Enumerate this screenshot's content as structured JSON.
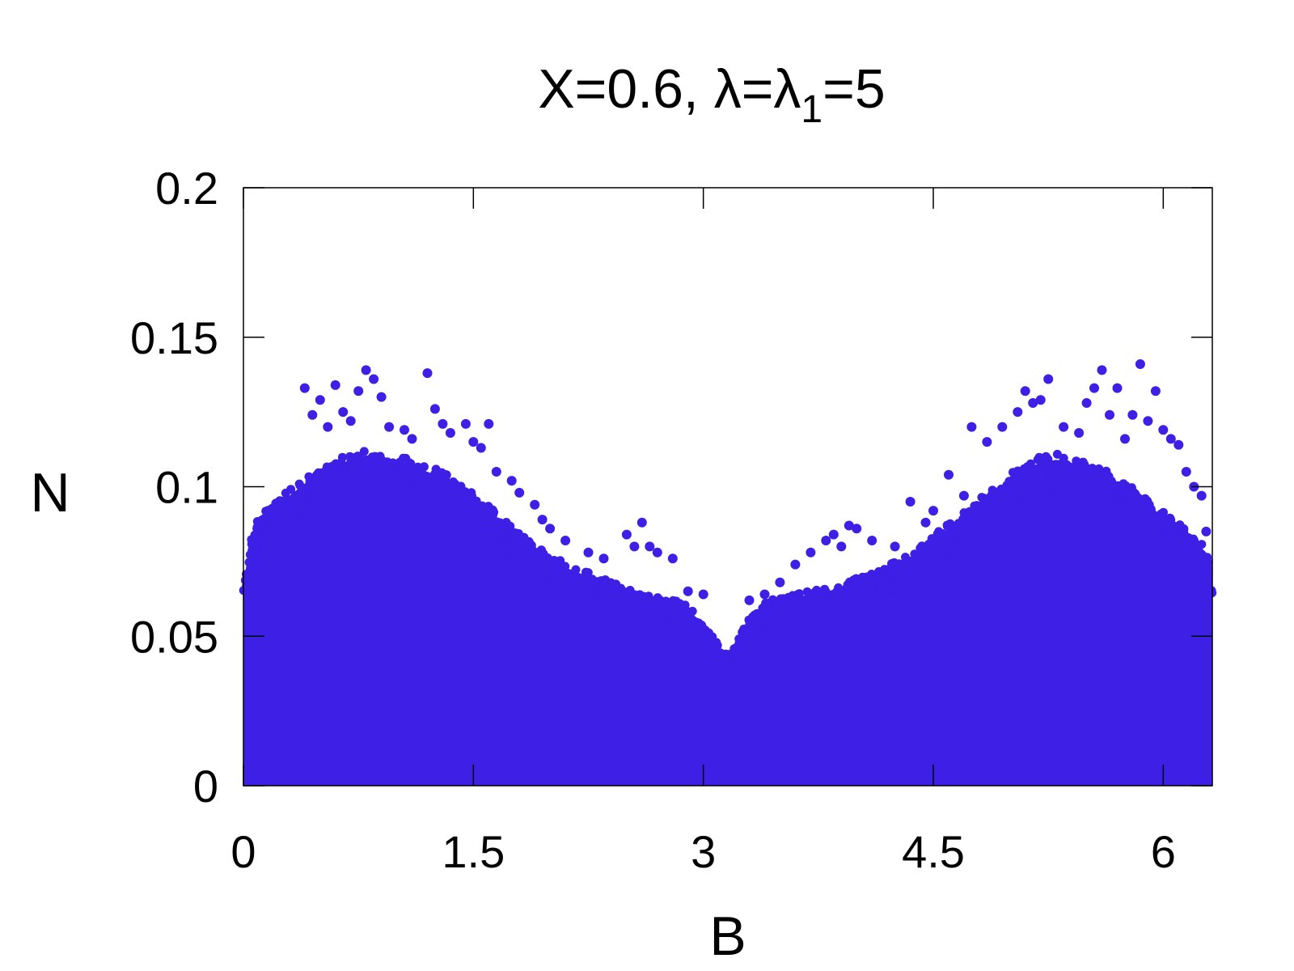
{
  "chart_data": {
    "type": "scatter",
    "title": {
      "prefix": "X=0.6, λ=λ",
      "subscript": "1",
      "suffix": "=5"
    },
    "xlabel": "B",
    "ylabel": "N",
    "xlim": [
      0,
      6.32
    ],
    "ylim": [
      0,
      0.2
    ],
    "xticks": [
      {
        "value": 0,
        "label": "0"
      },
      {
        "value": 1.5,
        "label": "1.5"
      },
      {
        "value": 3,
        "label": "3"
      },
      {
        "value": 4.5,
        "label": "4.5"
      },
      {
        "value": 6,
        "label": "6"
      }
    ],
    "yticks": [
      {
        "value": 0,
        "label": "0"
      },
      {
        "value": 0.05,
        "label": "0.05"
      },
      {
        "value": 0.1,
        "label": "0.1"
      },
      {
        "value": 0.15,
        "label": "0.15"
      },
      {
        "value": 0.2,
        "label": "0.2"
      }
    ],
    "grid": false,
    "marker_color": "#3d1fe6",
    "series": [
      {
        "envelope": [
          [
            0.0,
            0.068
          ],
          [
            0.05,
            0.083
          ],
          [
            0.1,
            0.09
          ],
          [
            0.2,
            0.093
          ],
          [
            0.3,
            0.097
          ],
          [
            0.4,
            0.101
          ],
          [
            0.5,
            0.104
          ],
          [
            0.6,
            0.107
          ],
          [
            0.7,
            0.109
          ],
          [
            0.8,
            0.11
          ],
          [
            0.9,
            0.109
          ],
          [
            1.0,
            0.108
          ],
          [
            1.1,
            0.107
          ],
          [
            1.2,
            0.105
          ],
          [
            1.3,
            0.103
          ],
          [
            1.4,
            0.1
          ],
          [
            1.5,
            0.096
          ],
          [
            1.6,
            0.092
          ],
          [
            1.7,
            0.087
          ],
          [
            1.8,
            0.083
          ],
          [
            1.9,
            0.079
          ],
          [
            2.0,
            0.076
          ],
          [
            2.1,
            0.073
          ],
          [
            2.2,
            0.071
          ],
          [
            2.3,
            0.069
          ],
          [
            2.4,
            0.067
          ],
          [
            2.5,
            0.065
          ],
          [
            2.6,
            0.063
          ],
          [
            2.7,
            0.062
          ],
          [
            2.8,
            0.061
          ],
          [
            2.9,
            0.059
          ],
          [
            3.0,
            0.054
          ],
          [
            3.05,
            0.05
          ],
          [
            3.1,
            0.046
          ],
          [
            3.15,
            0.043
          ],
          [
            3.2,
            0.045
          ],
          [
            3.25,
            0.05
          ],
          [
            3.3,
            0.055
          ],
          [
            3.4,
            0.06
          ],
          [
            3.5,
            0.062
          ],
          [
            3.6,
            0.063
          ],
          [
            3.7,
            0.064
          ],
          [
            3.8,
            0.065
          ],
          [
            3.9,
            0.066
          ],
          [
            4.0,
            0.068
          ],
          [
            4.1,
            0.07
          ],
          [
            4.2,
            0.072
          ],
          [
            4.3,
            0.075
          ],
          [
            4.4,
            0.078
          ],
          [
            4.5,
            0.082
          ],
          [
            4.6,
            0.086
          ],
          [
            4.7,
            0.09
          ],
          [
            4.8,
            0.094
          ],
          [
            4.9,
            0.098
          ],
          [
            5.0,
            0.102
          ],
          [
            5.1,
            0.106
          ],
          [
            5.2,
            0.108
          ],
          [
            5.3,
            0.109
          ],
          [
            5.4,
            0.108
          ],
          [
            5.5,
            0.106
          ],
          [
            5.6,
            0.104
          ],
          [
            5.7,
            0.101
          ],
          [
            5.8,
            0.098
          ],
          [
            5.9,
            0.094
          ],
          [
            6.0,
            0.09
          ],
          [
            6.1,
            0.086
          ],
          [
            6.2,
            0.082
          ],
          [
            6.28,
            0.078
          ],
          [
            6.32,
            0.07
          ]
        ],
        "outliers": [
          [
            0.4,
            0.133
          ],
          [
            0.45,
            0.124
          ],
          [
            0.5,
            0.129
          ],
          [
            0.55,
            0.12
          ],
          [
            0.6,
            0.134
          ],
          [
            0.65,
            0.125
          ],
          [
            0.7,
            0.122
          ],
          [
            0.75,
            0.132
          ],
          [
            0.8,
            0.139
          ],
          [
            0.85,
            0.136
          ],
          [
            0.9,
            0.13
          ],
          [
            0.95,
            0.12
          ],
          [
            1.05,
            0.119
          ],
          [
            1.1,
            0.116
          ],
          [
            1.2,
            0.138
          ],
          [
            1.25,
            0.126
          ],
          [
            1.3,
            0.121
          ],
          [
            1.35,
            0.118
          ],
          [
            1.45,
            0.121
          ],
          [
            1.5,
            0.115
          ],
          [
            1.55,
            0.113
          ],
          [
            1.6,
            0.121
          ],
          [
            1.65,
            0.105
          ],
          [
            1.75,
            0.102
          ],
          [
            1.8,
            0.098
          ],
          [
            1.9,
            0.094
          ],
          [
            1.95,
            0.089
          ],
          [
            2.0,
            0.086
          ],
          [
            2.1,
            0.082
          ],
          [
            2.25,
            0.078
          ],
          [
            2.35,
            0.076
          ],
          [
            2.5,
            0.084
          ],
          [
            2.55,
            0.08
          ],
          [
            2.6,
            0.088
          ],
          [
            2.65,
            0.08
          ],
          [
            2.7,
            0.078
          ],
          [
            2.8,
            0.076
          ],
          [
            2.9,
            0.065
          ],
          [
            3.0,
            0.064
          ],
          [
            3.3,
            0.062
          ],
          [
            3.4,
            0.064
          ],
          [
            3.5,
            0.068
          ],
          [
            3.6,
            0.074
          ],
          [
            3.7,
            0.078
          ],
          [
            3.8,
            0.082
          ],
          [
            3.85,
            0.084
          ],
          [
            3.9,
            0.08
          ],
          [
            3.95,
            0.087
          ],
          [
            4.0,
            0.086
          ],
          [
            4.1,
            0.082
          ],
          [
            4.25,
            0.08
          ],
          [
            4.35,
            0.095
          ],
          [
            4.45,
            0.088
          ],
          [
            4.5,
            0.092
          ],
          [
            4.6,
            0.104
          ],
          [
            4.7,
            0.097
          ],
          [
            4.75,
            0.12
          ],
          [
            4.85,
            0.115
          ],
          [
            4.95,
            0.12
          ],
          [
            5.05,
            0.125
          ],
          [
            5.1,
            0.132
          ],
          [
            5.15,
            0.128
          ],
          [
            5.2,
            0.129
          ],
          [
            5.25,
            0.136
          ],
          [
            5.35,
            0.12
          ],
          [
            5.45,
            0.118
          ],
          [
            5.5,
            0.128
          ],
          [
            5.55,
            0.133
          ],
          [
            5.6,
            0.139
          ],
          [
            5.65,
            0.124
          ],
          [
            5.7,
            0.133
          ],
          [
            5.75,
            0.116
          ],
          [
            5.8,
            0.124
          ],
          [
            5.85,
            0.141
          ],
          [
            5.9,
            0.122
          ],
          [
            5.95,
            0.132
          ],
          [
            6.0,
            0.119
          ],
          [
            6.05,
            0.116
          ],
          [
            6.1,
            0.114
          ],
          [
            6.15,
            0.105
          ],
          [
            6.2,
            0.1
          ],
          [
            6.25,
            0.097
          ],
          [
            6.28,
            0.085
          ]
        ]
      }
    ]
  }
}
